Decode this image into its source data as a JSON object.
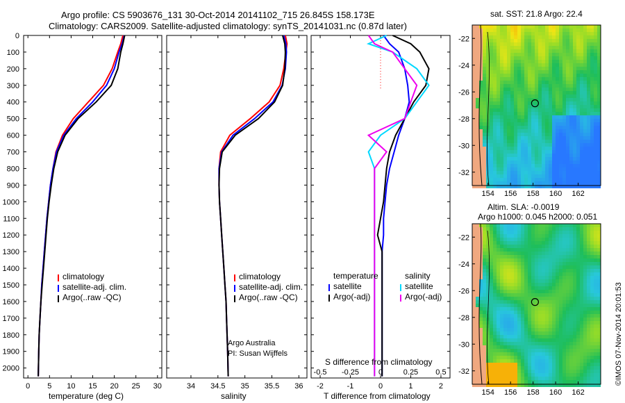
{
  "header": {
    "title_line1": "Argo profile: CS 5903676_131 30-Oct-2014 20141102_715 26.845S 158.173E",
    "title_line2": "Climatology: CARS2009. Satellite-adjusted climatology: synTS_20141031.nc (0.87d later)"
  },
  "depth_ticks": [
    0,
    100,
    200,
    300,
    400,
    500,
    600,
    700,
    800,
    900,
    1000,
    1100,
    1200,
    1300,
    1400,
    1500,
    1600,
    1700,
    1800,
    1900,
    2000
  ],
  "chart_data": [
    {
      "type": "line",
      "panel": "temperature",
      "xlabel": "temperature (deg C)",
      "xticks": [
        0,
        5,
        10,
        15,
        20,
        25,
        30
      ],
      "xlim": [
        -1,
        31
      ],
      "ylim": [
        0,
        2060
      ],
      "y_inverted": true,
      "legend": [
        "climatology",
        "satellite-adj. clim.",
        "Argo(..raw -QC)"
      ],
      "series": [
        {
          "name": "climatology",
          "color": "#ff0000",
          "x": [
            22.0,
            21.5,
            20.8,
            19.5,
            17.5,
            14.0,
            10.5,
            8.0,
            6.5,
            5.8,
            5.2,
            4.8,
            4.4,
            4.1,
            3.8,
            3.5,
            3.2,
            3.0,
            2.8,
            2.6,
            2.5,
            2.4
          ],
          "y": [
            0,
            50,
            100,
            200,
            300,
            400,
            500,
            600,
            700,
            800,
            900,
            1000,
            1100,
            1200,
            1300,
            1400,
            1500,
            1600,
            1700,
            1800,
            1900,
            2050
          ]
        },
        {
          "name": "satellite-adj. clim.",
          "color": "#0000ff",
          "x": [
            22.3,
            21.8,
            21.1,
            20.0,
            18.2,
            15.0,
            11.2,
            8.3,
            6.6,
            5.8,
            5.2,
            4.8,
            4.4,
            4.1,
            3.8,
            3.5,
            3.2,
            3.0,
            2.8,
            2.6,
            2.5,
            2.4
          ],
          "y": [
            0,
            50,
            100,
            200,
            300,
            400,
            500,
            600,
            700,
            800,
            900,
            1000,
            1100,
            1200,
            1300,
            1400,
            1500,
            1600,
            1700,
            1800,
            1900,
            2050
          ]
        },
        {
          "name": "Argo(..raw -QC)",
          "color": "#000000",
          "x": [
            22.4,
            22.0,
            21.5,
            20.8,
            19.3,
            15.8,
            11.6,
            8.6,
            6.9,
            6.0,
            5.4,
            4.9,
            4.5,
            4.2,
            3.9,
            3.6,
            3.3,
            3.0,
            2.8,
            2.6,
            2.5,
            2.4
          ],
          "y": [
            0,
            50,
            100,
            200,
            300,
            400,
            500,
            600,
            700,
            800,
            900,
            1000,
            1100,
            1200,
            1300,
            1400,
            1500,
            1600,
            1700,
            1800,
            1900,
            2050
          ]
        }
      ]
    },
    {
      "type": "line",
      "panel": "salinity",
      "xlabel": "salinity",
      "xticks": [
        34,
        34.5,
        35,
        35.5,
        36
      ],
      "xlim": [
        33.55,
        36.15
      ],
      "ylim": [
        0,
        2060
      ],
      "y_inverted": true,
      "legend": [
        "climatology",
        "satellite-adj. clim.",
        "Argo(..raw -QC)"
      ],
      "annotation_line1": "Argo Australia",
      "annotation_line2": "PI: Susan Wijffels",
      "series": [
        {
          "name": "climatology",
          "color": "#ff0000",
          "x": [
            35.75,
            35.78,
            35.76,
            35.72,
            35.65,
            35.45,
            35.1,
            34.72,
            34.55,
            34.52,
            34.52,
            34.53,
            34.55,
            34.57,
            34.59,
            34.61,
            34.63,
            34.65,
            34.66,
            34.67,
            34.68,
            34.69
          ],
          "y": [
            0,
            50,
            100,
            200,
            300,
            400,
            500,
            600,
            700,
            800,
            900,
            1000,
            1100,
            1200,
            1300,
            1400,
            1500,
            1600,
            1700,
            1800,
            1900,
            2050
          ]
        },
        {
          "name": "satellite-adj. clim.",
          "color": "#0000ff",
          "x": [
            35.72,
            35.76,
            35.77,
            35.75,
            35.69,
            35.52,
            35.18,
            34.78,
            34.57,
            34.52,
            34.52,
            34.53,
            34.55,
            34.57,
            34.59,
            34.61,
            34.63,
            34.65,
            34.66,
            34.67,
            34.68,
            34.69
          ],
          "y": [
            0,
            50,
            100,
            200,
            300,
            400,
            500,
            600,
            700,
            800,
            900,
            1000,
            1100,
            1200,
            1300,
            1400,
            1500,
            1600,
            1700,
            1800,
            1900,
            2050
          ]
        },
        {
          "name": "Argo(..raw -QC)",
          "color": "#000000",
          "x": [
            35.7,
            35.74,
            35.75,
            35.74,
            35.7,
            35.55,
            35.25,
            34.82,
            34.58,
            34.53,
            34.52,
            34.53,
            34.55,
            34.57,
            34.59,
            34.61,
            34.63,
            34.65,
            34.66,
            34.67,
            34.68,
            34.69
          ],
          "y": [
            0,
            50,
            100,
            200,
            300,
            400,
            500,
            600,
            700,
            800,
            900,
            1000,
            1100,
            1200,
            1300,
            1400,
            1500,
            1600,
            1700,
            1800,
            1900,
            2050
          ]
        }
      ]
    },
    {
      "type": "line",
      "panel": "difference",
      "xlabel": "T difference from climatology",
      "xlabel_top": "S difference from climatology",
      "xticks": [
        -2,
        -1,
        0,
        1,
        2
      ],
      "xticks_s": [
        -0.5,
        -0.25,
        0,
        0.25,
        0.5
      ],
      "xlim": [
        -2.3,
        2.3
      ],
      "ylim": [
        0,
        2060
      ],
      "y_inverted": true,
      "legend_temperature_title": "temperature",
      "legend_salinity_title": "salinity",
      "legend_temperature": [
        "satellite",
        "Argo(-adj)"
      ],
      "legend_salinity": [
        "satellite",
        "Argo(-adj)"
      ],
      "series": [
        {
          "name": "temperature satellite",
          "color": "#0000ff",
          "x": [
            0.1,
            0.3,
            0.6,
            0.8,
            0.9,
            0.95,
            0.8,
            0.6,
            0.45,
            0.3,
            0.2,
            0.15,
            0.1,
            0.1,
            0.05,
            0.05,
            0.05,
            0.05,
            0.05,
            0.05,
            0.05
          ],
          "y": [
            0,
            50,
            100,
            200,
            300,
            400,
            500,
            600,
            700,
            800,
            900,
            1000,
            1100,
            1200,
            1300,
            1400,
            1500,
            1600,
            1700,
            1800,
            2050
          ]
        },
        {
          "name": "temperature Argo(-adj)",
          "color": "#000000",
          "x": [
            0.4,
            1.0,
            1.3,
            1.6,
            1.5,
            1.1,
            0.8,
            0.5,
            0.3,
            0.2,
            0.15,
            0.1,
            0.0,
            -0.1,
            0.05,
            0.05,
            0.05,
            0.05,
            0.05,
            0.05,
            0.05
          ],
          "y": [
            0,
            50,
            100,
            200,
            300,
            400,
            500,
            600,
            700,
            800,
            900,
            1000,
            1100,
            1200,
            1300,
            1400,
            1500,
            1600,
            1700,
            1800,
            2050
          ]
        },
        {
          "name": "salinity satellite",
          "color": "#00d8ff",
          "x": [
            0.05,
            -0.1,
            0.1,
            0.3,
            0.4,
            0.3,
            0.2,
            0.0,
            -0.1,
            -0.05,
            -0.05,
            -0.05,
            -0.05,
            -0.05,
            -0.05,
            -0.05,
            -0.05,
            -0.05,
            -0.05,
            -0.05,
            -0.05
          ],
          "y": [
            0,
            50,
            100,
            200,
            300,
            400,
            500,
            600,
            700,
            800,
            900,
            1000,
            1100,
            1200,
            1300,
            1400,
            1500,
            1600,
            1700,
            1800,
            2050
          ]
        },
        {
          "name": "salinity Argo(-adj)",
          "color": "#ee00ee",
          "x": [
            -0.1,
            -0.05,
            0.1,
            0.2,
            0.3,
            0.25,
            0.2,
            -0.1,
            0.05,
            -0.05,
            -0.05,
            -0.05,
            -0.05,
            -0.05,
            -0.05,
            -0.05,
            -0.05,
            -0.05,
            -0.05,
            -0.05,
            -0.05
          ],
          "y": [
            0,
            50,
            100,
            200,
            300,
            400,
            500,
            600,
            700,
            800,
            900,
            1000,
            1100,
            1200,
            1300,
            1400,
            1500,
            1600,
            1700,
            1800,
            2050
          ]
        }
      ]
    },
    {
      "type": "heatmap",
      "panel": "sst_map",
      "title": "sat. SST: 21.8 Argo: 22.4",
      "xticks": [
        154,
        156,
        158,
        160,
        162
      ],
      "yticks": [
        -22,
        -24,
        -26,
        -28,
        -30,
        -32
      ],
      "xlim": [
        152.6,
        164
      ],
      "ylim": [
        -33,
        -21
      ],
      "float_position": [
        158.17,
        -26.85
      ]
    },
    {
      "type": "heatmap",
      "panel": "sla_map",
      "title_line1": "Altim. SLA: -0.0019",
      "title_line2": "Argo h1000: 0.045 h2000: 0.051",
      "xticks": [
        154,
        156,
        158,
        160,
        162
      ],
      "yticks": [
        -22,
        -24,
        -26,
        -28,
        -30,
        -32
      ],
      "xlim": [
        152.6,
        164
      ],
      "ylim": [
        -33,
        -21
      ],
      "float_position": [
        158.17,
        -26.85
      ]
    }
  ],
  "footer": {
    "credit": "©IMOS 07-Nov-2014 20:01:53"
  }
}
